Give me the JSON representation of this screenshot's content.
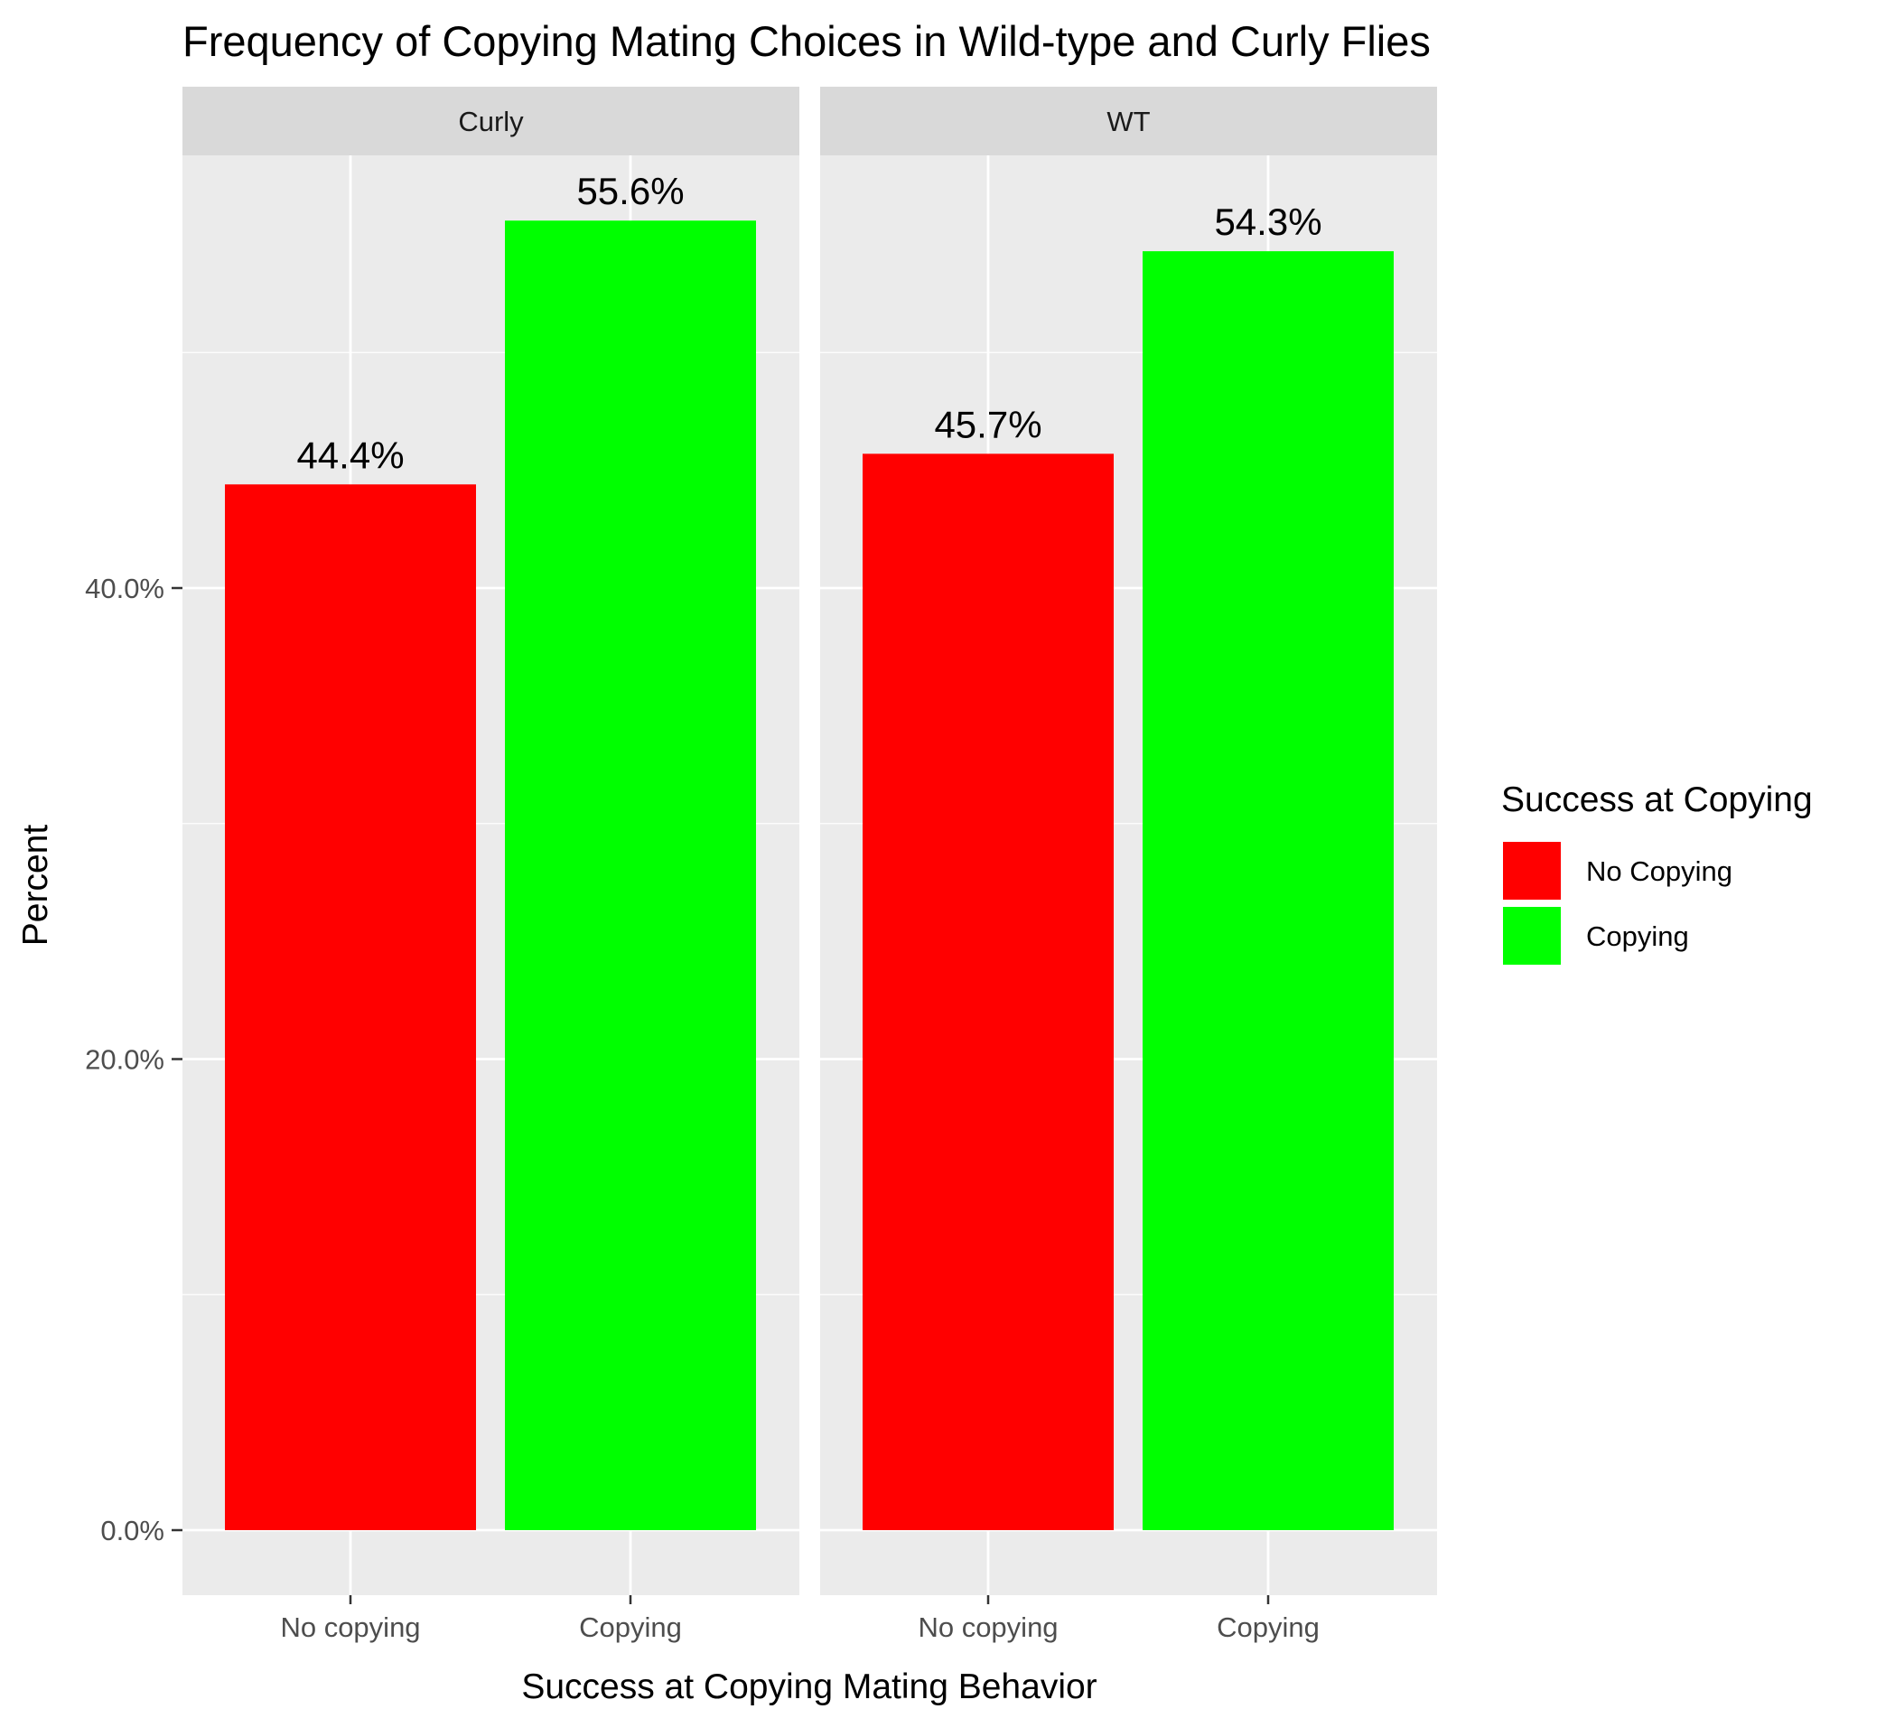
{
  "chart_data": {
    "type": "bar",
    "title": "Frequency of Copying Mating Choices in Wild-type and Curly Flies",
    "xlabel": "Success at Copying Mating Behavior",
    "ylabel": "Percent",
    "ylim": [
      0,
      0.6
    ],
    "yticks": [
      0,
      0.2,
      0.4
    ],
    "ytick_labels": [
      "0.0%",
      "20.0%",
      "40.0%"
    ],
    "categories": [
      "No copying",
      "Copying"
    ],
    "facets": [
      {
        "label": "Curly",
        "values": [
          0.444,
          0.556
        ],
        "value_labels": [
          "44.4%",
          "55.6%"
        ]
      },
      {
        "label": "WT",
        "values": [
          0.457,
          0.543
        ],
        "value_labels": [
          "45.7%",
          "54.3%"
        ]
      }
    ],
    "legend": {
      "title": "Success at Copying",
      "position": "right",
      "items": [
        {
          "label": "No Copying",
          "color": "#FF0000"
        },
        {
          "label": "Copying",
          "color": "#00FF00"
        }
      ]
    },
    "grid": true,
    "panel_background": "#EBEBEB",
    "strip_background": "#D9D9D9"
  }
}
